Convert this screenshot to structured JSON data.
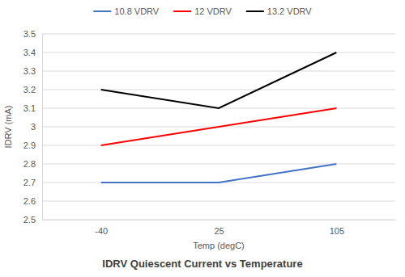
{
  "chart_data": {
    "type": "line",
    "title": "IDRV Quiescent Current vs Temperature",
    "x_label": "Temp (degC)",
    "y_label": "IDRV (mA)",
    "categories": [
      "-40",
      "25",
      "105"
    ],
    "series": [
      {
        "name": "10.8 VDRV",
        "color": "#4472c4",
        "values": [
          2.7,
          2.7,
          2.8
        ]
      },
      {
        "name": "12 VDRV",
        "color": "#ff0000",
        "values": [
          2.9,
          3.0,
          3.1
        ]
      },
      {
        "name": "13.2 VDRV",
        "color": "#000000",
        "values": [
          3.2,
          3.1,
          3.4
        ]
      }
    ],
    "ylim": [
      2.5,
      3.5
    ],
    "yticks": [
      2.5,
      2.6,
      2.7,
      2.8,
      2.9,
      3,
      3.1,
      3.2,
      3.3,
      3.4,
      3.5
    ],
    "grid": true,
    "legend": "top"
  }
}
